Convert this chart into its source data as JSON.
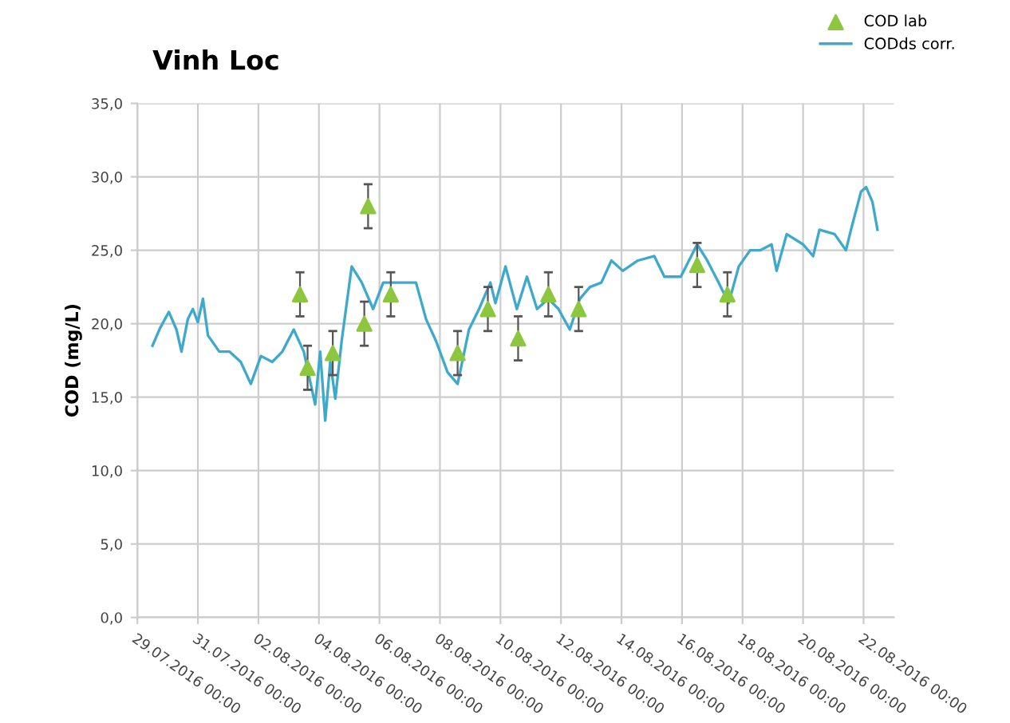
{
  "chart_data": {
    "type": "line",
    "title": "Vinh Loc",
    "ylabel": "COD (mg/L)",
    "series": [
      {
        "name": "COD lab",
        "type": "scatter",
        "color": "#8dc63f",
        "marker": "triangle",
        "x": [
          "2016-08-03T09:00",
          "2016-08-03T15:00",
          "2016-08-04T11:00",
          "2016-08-05T12:00",
          "2016-08-05T15:00",
          "2016-08-06T09:00",
          "2016-08-08T14:00",
          "2016-08-09T14:00",
          "2016-08-10T14:00",
          "2016-08-11T14:00",
          "2016-08-12T14:00",
          "2016-08-16T12:00",
          "2016-08-17T12:00"
        ],
        "values": [
          22,
          17,
          18,
          20,
          28,
          22,
          18,
          21,
          19,
          22,
          21,
          24,
          22
        ],
        "errors": [
          1.5,
          1.5,
          1.5,
          1.5,
          1.5,
          1.5,
          1.5,
          1.5,
          1.5,
          1.5,
          1.5,
          1.5,
          1.5
        ]
      },
      {
        "name": "CODds corr.",
        "color": "#3fa9cc",
        "marker": "none",
        "line_style": "solid",
        "x": [
          "2016-07-29T12:00",
          "2016-07-29T18:00",
          "2016-07-30T01:00",
          "2016-07-30T07:00",
          "2016-07-30T11:00",
          "2016-07-30T16:00",
          "2016-07-30T20:00",
          "2016-07-31T00:00",
          "2016-07-31T04:00",
          "2016-07-31T08:00",
          "2016-07-31T17:00",
          "2016-08-01T01:00",
          "2016-08-01T10:00",
          "2016-08-01T18:00",
          "2016-08-02T02:00",
          "2016-08-02T11:00",
          "2016-08-02T19:00",
          "2016-08-03T04:00",
          "2016-08-03T12:00",
          "2016-08-03T21:00",
          "2016-08-04T01:00",
          "2016-08-04T05:00",
          "2016-08-04T09:00",
          "2016-08-04T13:00",
          "2016-08-04T18:00",
          "2016-08-05T02:00",
          "2016-08-05T10:00",
          "2016-08-05T19:00",
          "2016-08-06T03:00",
          "2016-08-06T12:00",
          "2016-08-06T20:00",
          "2016-08-07T05:00",
          "2016-08-07T13:00",
          "2016-08-07T21:00",
          "2016-08-08T06:00",
          "2016-08-08T14:00",
          "2016-08-08T23:00",
          "2016-08-09T07:00",
          "2016-08-09T16:00",
          "2016-08-09T20:00",
          "2016-08-10T04:00",
          "2016-08-10T13:00",
          "2016-08-10T21:00",
          "2016-08-11T05:00",
          "2016-08-11T14:00",
          "2016-08-11T22:00",
          "2016-08-12T07:00",
          "2016-08-12T15:00",
          "2016-08-12T23:00",
          "2016-08-13T08:00",
          "2016-08-13T16:00",
          "2016-08-14T01:00",
          "2016-08-14T13:00",
          "2016-08-15T02:00",
          "2016-08-15T10:00",
          "2016-08-15T23:00",
          "2016-08-16T12:00",
          "2016-08-16T20:00",
          "2016-08-17T05:00",
          "2016-08-17T13:00",
          "2016-08-17T21:00",
          "2016-08-18T06:00",
          "2016-08-18T14:00",
          "2016-08-18T23:00",
          "2016-08-19T03:00",
          "2016-08-19T11:00",
          "2016-08-20T00:00",
          "2016-08-20T08:00",
          "2016-08-20T13:00",
          "2016-08-21T01:00",
          "2016-08-21T10:00",
          "2016-08-21T14:00",
          "2016-08-21T22:00",
          "2016-08-22T02:00",
          "2016-08-22T07:00",
          "2016-08-22T11:00"
        ],
        "values": [
          18.5,
          19.7,
          20.8,
          19.6,
          18.1,
          20.3,
          21.0,
          20.1,
          21.7,
          19.2,
          18.1,
          18.1,
          17.4,
          15.9,
          17.8,
          17.4,
          18.1,
          19.6,
          18.1,
          14.5,
          18.1,
          13.4,
          17.4,
          14.9,
          18.8,
          23.9,
          22.8,
          21.0,
          22.8,
          22.8,
          22.8,
          22.8,
          20.3,
          18.8,
          16.7,
          15.9,
          19.6,
          21.0,
          22.8,
          21.4,
          23.9,
          21.0,
          23.2,
          21.0,
          21.7,
          21.0,
          19.6,
          21.7,
          22.5,
          22.8,
          24.3,
          23.6,
          24.3,
          24.6,
          23.2,
          23.2,
          25.4,
          24.3,
          22.8,
          21.4,
          23.9,
          25.0,
          25.0,
          25.4,
          23.6,
          26.1,
          25.4,
          24.6,
          26.4,
          26.1,
          25.0,
          26.4,
          29.0,
          29.3,
          28.3,
          26.4
        ]
      }
    ],
    "xlim": [
      "2016-07-29",
      "2016-08-23"
    ],
    "xticks": [
      {
        "value": "2016-07-29",
        "label": "29.07.2016 00:00"
      },
      {
        "value": "2016-07-31",
        "label": "31.07.2016 00:00"
      },
      {
        "value": "2016-08-02",
        "label": "02.08.2016 00:00"
      },
      {
        "value": "2016-08-04",
        "label": "04.08.2016 00:00"
      },
      {
        "value": "2016-08-06",
        "label": "06.08.2016 00:00"
      },
      {
        "value": "2016-08-08",
        "label": "08.08.2016 00:00"
      },
      {
        "value": "2016-08-10",
        "label": "10.08.2016 00:00"
      },
      {
        "value": "2016-08-12",
        "label": "12.08.2016 00:00"
      },
      {
        "value": "2016-08-14",
        "label": "14.08.2016 00:00"
      },
      {
        "value": "2016-08-16",
        "label": "16.08.2016 00:00"
      },
      {
        "value": "2016-08-18",
        "label": "18.08.2016 00:00"
      },
      {
        "value": "2016-08-20",
        "label": "20.08.2016 00:00"
      },
      {
        "value": "2016-08-22",
        "label": "22.08.2016 00:00"
      }
    ],
    "ylim": [
      0,
      35
    ],
    "yticks": [
      {
        "value": 0,
        "label": "0,0"
      },
      {
        "value": 5,
        "label": "5,0"
      },
      {
        "value": 10,
        "label": "10,0"
      },
      {
        "value": 15,
        "label": "15,0"
      },
      {
        "value": 20,
        "label": "20,0"
      },
      {
        "value": 25,
        "label": "25,0"
      },
      {
        "value": 30,
        "label": "30,0"
      },
      {
        "value": 35,
        "label": "35,0"
      }
    ],
    "grid": true,
    "legend": "top right"
  }
}
